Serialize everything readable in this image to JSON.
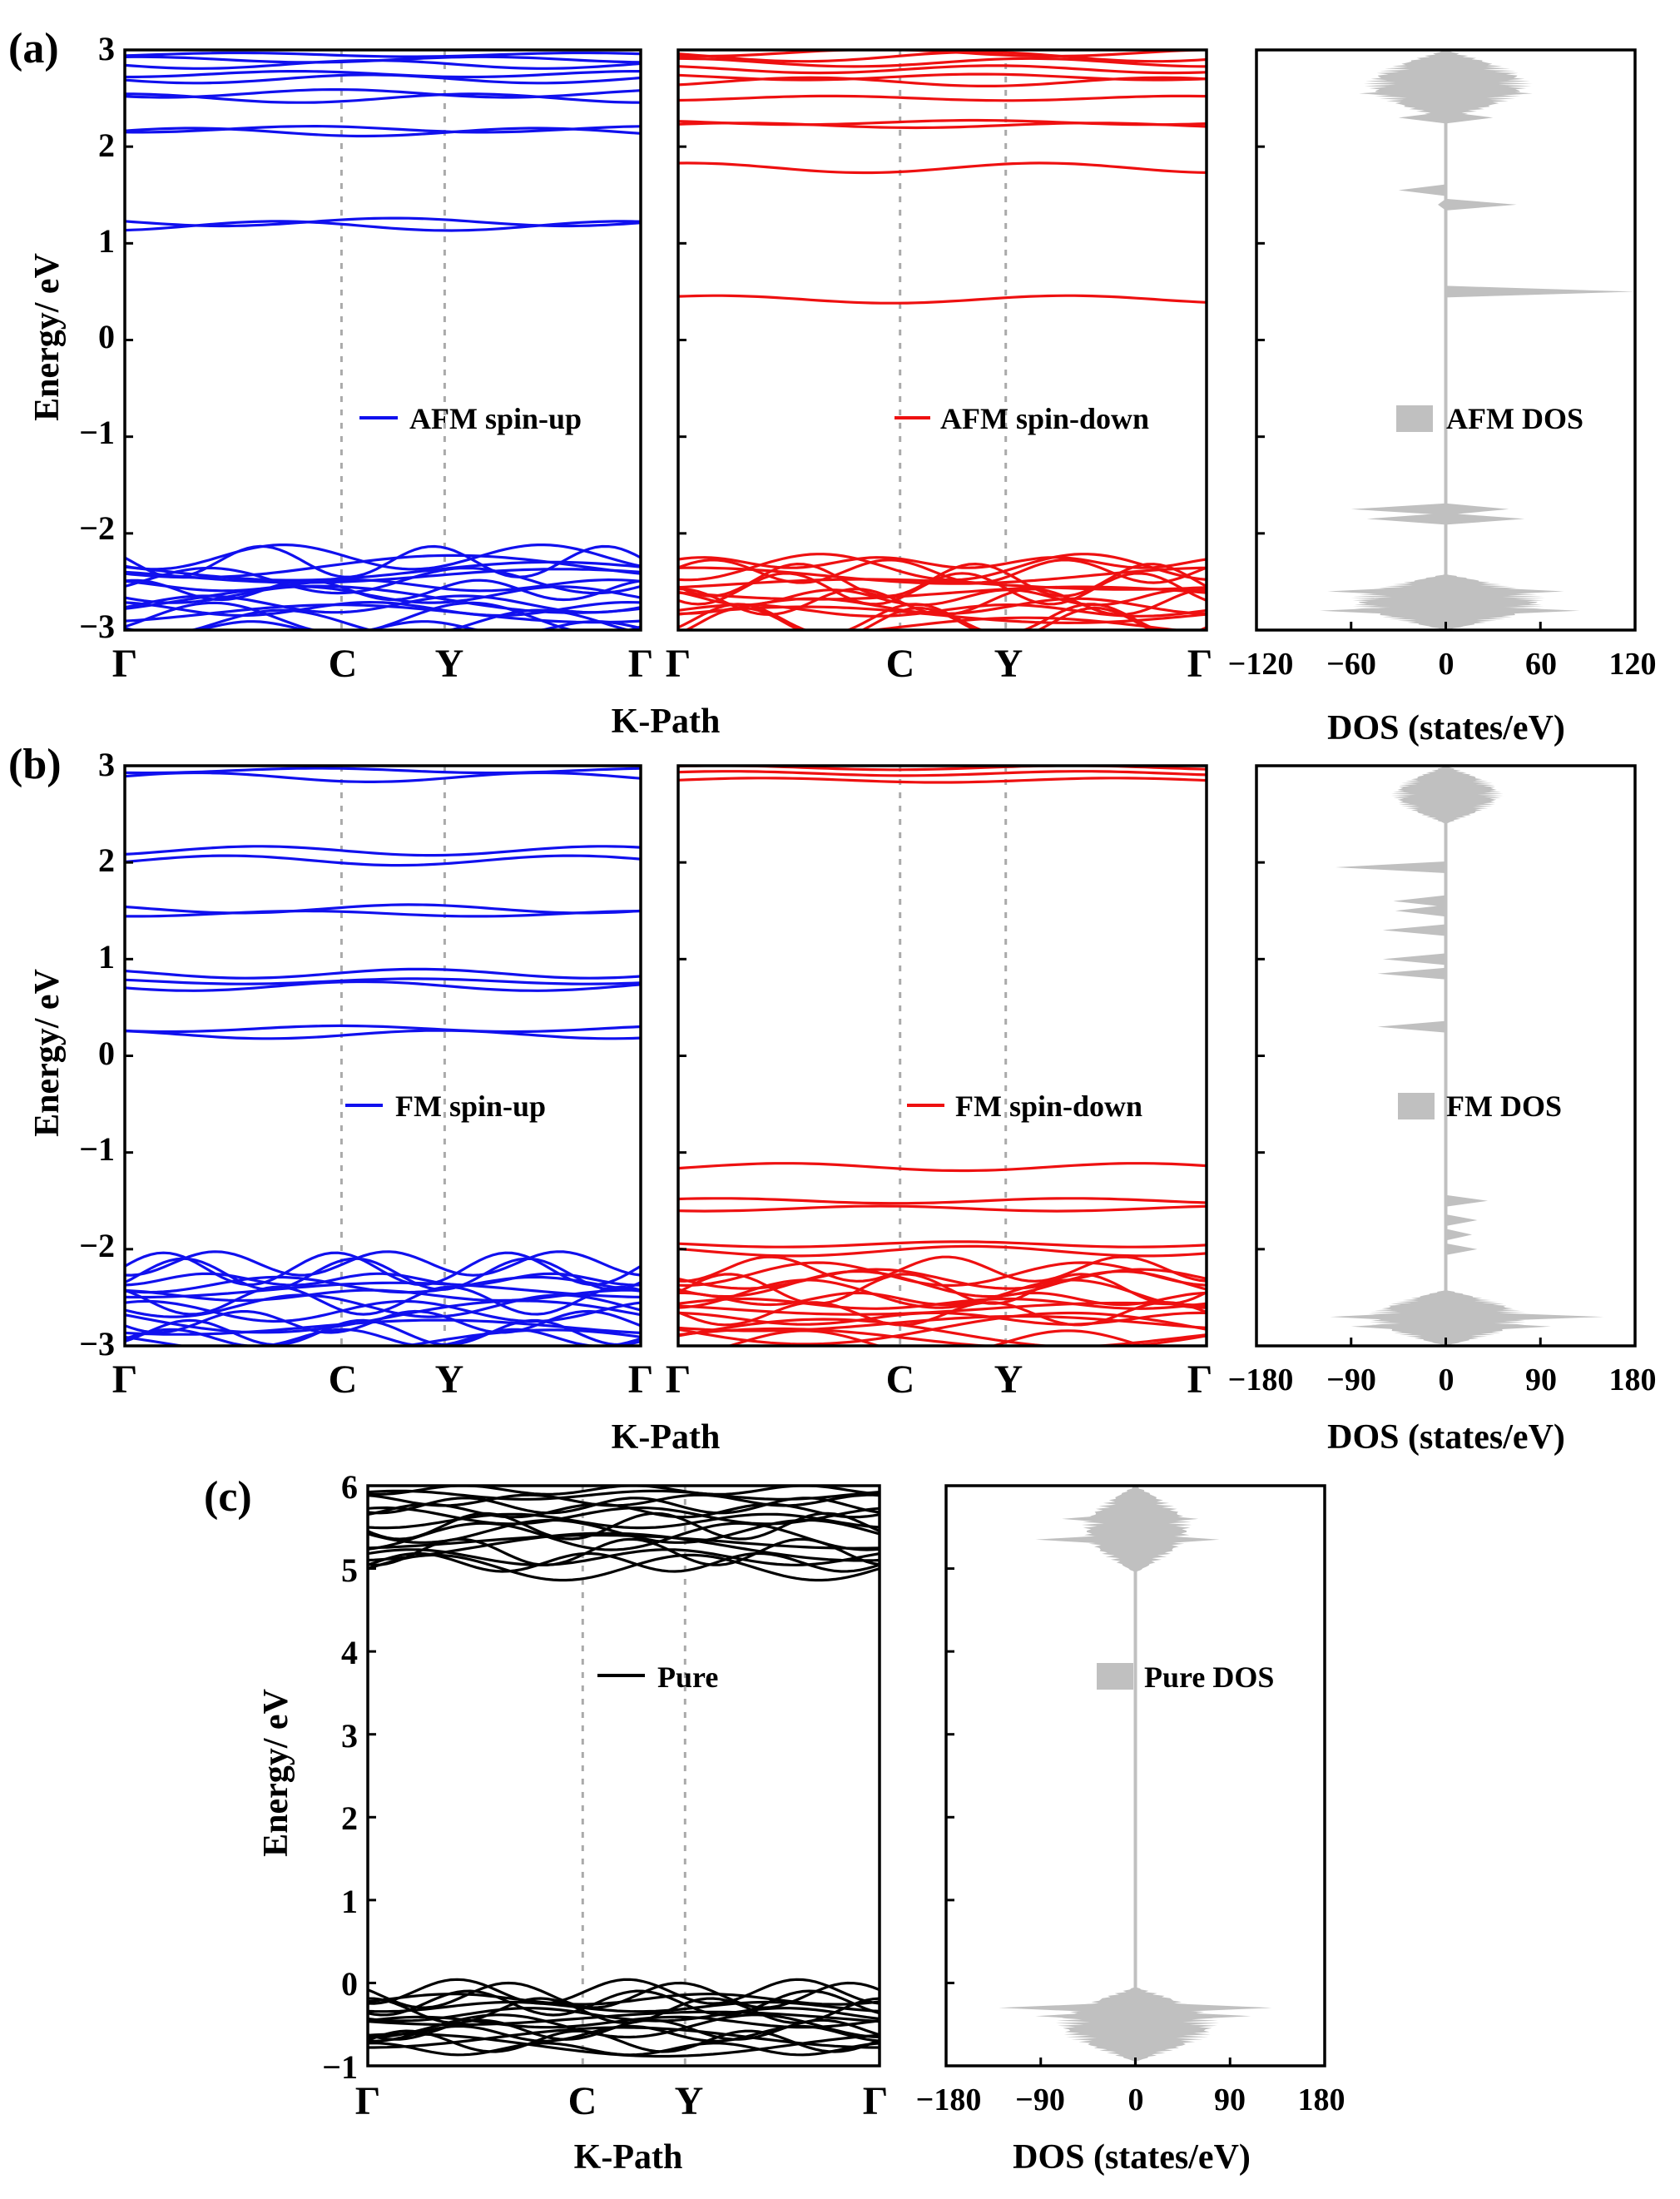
{
  "chart_data": [
    {
      "type": "band_structure",
      "panel_label": "(a)",
      "series": [
        {
          "name": "AFM spin-up",
          "color": "#1010ee"
        }
      ],
      "ylabel": "Energy/ eV",
      "xlabel": "K-Path",
      "ylim": [
        -3,
        3
      ],
      "yticks": [
        "3",
        "2",
        "1",
        "0",
        "−1",
        "−2",
        "−3"
      ],
      "kpoints": [
        "Γ",
        "C",
        "Y",
        "Γ"
      ],
      "kpoint_positions": [
        0,
        0.42,
        0.62,
        1
      ],
      "levels": [
        2.95,
        2.9,
        2.85,
        2.75,
        2.7,
        2.55,
        2.5,
        2.18,
        2.15,
        1.22,
        1.18
      ],
      "bands_range": [
        -3,
        -2.22
      ]
    },
    {
      "type": "band_structure",
      "panel_label": "",
      "series": [
        {
          "name": "AFM spin-down",
          "color": "#ee1010"
        }
      ],
      "ylim": [
        -3,
        3
      ],
      "kpoints": [
        "Γ",
        "C",
        "Y",
        "Γ"
      ],
      "kpoint_positions": [
        0,
        0.42,
        0.62,
        1
      ],
      "levels": [
        2.97,
        2.93,
        2.87,
        2.8,
        2.72,
        2.67,
        2.5,
        2.25,
        2.22,
        1.78,
        0.42
      ],
      "bands_range": [
        -3,
        -2.28
      ]
    },
    {
      "type": "dos",
      "series": [
        {
          "name": "AFM DOS",
          "color": "#c0c0c0"
        }
      ],
      "xlabel": "DOS (states/eV)",
      "xlim": [
        -120,
        120
      ],
      "xticks": [
        "−120",
        "−60",
        "0",
        "60",
        "120"
      ],
      "ylim": [
        -3,
        3
      ],
      "peaks": [
        [
          2.55,
          -55,
          55
        ],
        [
          2.3,
          -30,
          30
        ],
        [
          1.55,
          -30,
          0
        ],
        [
          1.4,
          -5,
          45
        ],
        [
          0.5,
          0,
          120
        ],
        [
          -1.75,
          -60,
          40
        ],
        [
          -1.85,
          -50,
          50
        ],
        [
          -2.6,
          -75,
          75
        ],
        [
          -2.8,
          -80,
          85
        ]
      ],
      "bands_range": [
        [
          -3,
          -2.42,
          65
        ],
        [
          2.28,
          3,
          55
        ]
      ]
    },
    {
      "type": "band_structure",
      "panel_label": "(b)",
      "series": [
        {
          "name": "FM spin-up",
          "color": "#1010ee"
        }
      ],
      "ylabel": "Energy/ eV",
      "xlabel": "K-Path",
      "ylim": [
        -3,
        3
      ],
      "yticks": [
        "3",
        "2",
        "1",
        "0",
        "−1",
        "−2",
        "−3"
      ],
      "kpoints": [
        "Γ",
        "C",
        "Y",
        "Γ"
      ],
      "kpoint_positions": [
        0,
        0.42,
        0.62,
        1
      ],
      "levels": [
        2.95,
        2.88,
        2.12,
        2.02,
        1.52,
        1.47,
        0.85,
        0.77,
        0.72,
        0.28,
        0.22
      ],
      "bands_range": [
        -3,
        -2.12
      ]
    },
    {
      "type": "band_structure",
      "panel_label": "",
      "series": [
        {
          "name": "FM spin-down",
          "color": "#ee1010"
        }
      ],
      "ylim": [
        -3,
        3
      ],
      "kpoints": [
        "Γ",
        "C",
        "Y",
        "Γ"
      ],
      "kpoint_positions": [
        0,
        0.42,
        0.62,
        1
      ],
      "levels": [
        2.98,
        2.92,
        2.85,
        -1.15,
        -1.5,
        -1.58,
        -1.95,
        -2.02
      ],
      "bands_range": [
        -3,
        -2.18
      ]
    },
    {
      "type": "dos",
      "series": [
        {
          "name": "FM DOS",
          "color": "#c0c0c0"
        }
      ],
      "xlabel": "DOS (states/eV)",
      "xlim": [
        -180,
        180
      ],
      "xticks": [
        "−180",
        "−90",
        "0",
        "90",
        "180"
      ],
      "ylim": [
        -3,
        3
      ],
      "peaks": [
        [
          1.95,
          -105,
          0
        ],
        [
          1.6,
          -50,
          0
        ],
        [
          1.5,
          -48,
          0
        ],
        [
          1.3,
          -60,
          0
        ],
        [
          1.0,
          -60,
          0
        ],
        [
          0.85,
          -65,
          0
        ],
        [
          0.3,
          -65,
          0
        ],
        [
          -1.5,
          0,
          40
        ],
        [
          -1.7,
          0,
          30
        ],
        [
          -1.85,
          0,
          25
        ],
        [
          -2.0,
          0,
          30
        ],
        [
          -2.7,
          -110,
          150
        ],
        [
          -2.8,
          -90,
          100
        ]
      ],
      "bands_range": [
        [
          -3,
          -2.42,
          80
        ],
        [
          2.4,
          3,
          55
        ]
      ]
    },
    {
      "type": "band_structure",
      "panel_label": "(c)",
      "series": [
        {
          "name": "Pure",
          "color": "#000000"
        }
      ],
      "ylabel": "Energy/ eV",
      "xlabel": "K-Path",
      "ylim": [
        -1,
        6
      ],
      "yticks": [
        "6",
        "5",
        "4",
        "3",
        "2",
        "1",
        "0",
        "−1"
      ],
      "kpoints": [
        "Γ",
        "C",
        "Y",
        "Γ"
      ],
      "kpoint_positions": [
        0,
        0.42,
        0.62,
        1
      ],
      "bands_range": [
        [
          4.98,
          5.98
        ],
        [
          -0.82,
          -0.08
        ]
      ]
    },
    {
      "type": "dos",
      "series": [
        {
          "name": "Pure DOS",
          "color": "#c0c0c0"
        }
      ],
      "xlabel": "DOS (states/eV)",
      "xlim": [
        -180,
        180
      ],
      "xticks": [
        "−180",
        "−90",
        "0",
        "90",
        "180"
      ],
      "ylim": [
        -1,
        6
      ],
      "peaks": [
        [
          5.35,
          -95,
          80
        ],
        [
          5.6,
          -70,
          60
        ],
        [
          -0.3,
          -130,
          130
        ],
        [
          -0.4,
          -95,
          110
        ]
      ],
      "bands_range": [
        [
          4.95,
          6,
          55
        ],
        [
          -0.95,
          -0.05,
          80
        ]
      ]
    }
  ]
}
